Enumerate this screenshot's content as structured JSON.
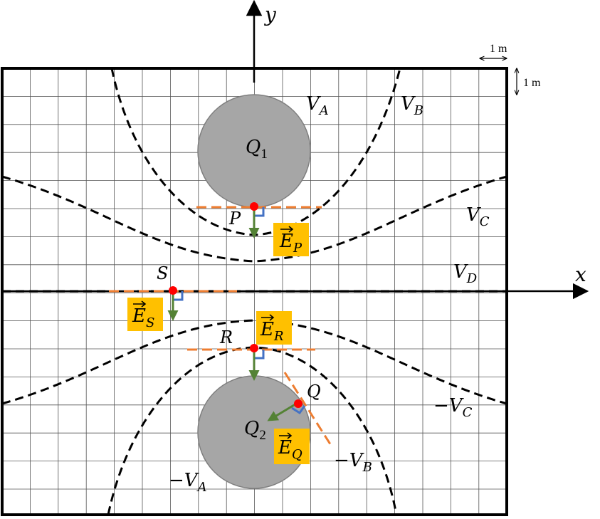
{
  "axes": {
    "x_label": "x",
    "y_label": "y"
  },
  "scale": {
    "horizontal": "1 m",
    "vertical": "1 m"
  },
  "charges": [
    {
      "id": "Q1",
      "base": "Q",
      "sub": "1"
    },
    {
      "id": "Q2",
      "base": "Q",
      "sub": "2"
    }
  ],
  "equipotentials": {
    "VA": {
      "base": "V",
      "sub": "A"
    },
    "VB": {
      "base": "V",
      "sub": "B"
    },
    "VC": {
      "base": "V",
      "sub": "C"
    },
    "VD": {
      "base": "V",
      "sub": "D"
    },
    "negVA": {
      "base": "−V",
      "sub": "A"
    },
    "negVB": {
      "base": "−V",
      "sub": "B"
    },
    "negVC": {
      "base": "−V",
      "sub": "C"
    }
  },
  "points": {
    "P": "P",
    "S": "S",
    "R": "R",
    "Q": "Q"
  },
  "fields": {
    "EP": {
      "base": "E",
      "sub": "P"
    },
    "ES": {
      "base": "E",
      "sub": "S"
    },
    "ER": {
      "base": "E",
      "sub": "R"
    },
    "EQ": {
      "base": "E",
      "sub": "Q"
    }
  },
  "colors": {
    "grid": "#555555",
    "charge_fill": "#a6a6a6",
    "charge_stroke": "#7f7f7f",
    "field_arrow": "#548235",
    "tangent": "#ed7d31",
    "right_angle": "#4472c4",
    "point": "#ff0000",
    "label_box": "#ffc000"
  }
}
